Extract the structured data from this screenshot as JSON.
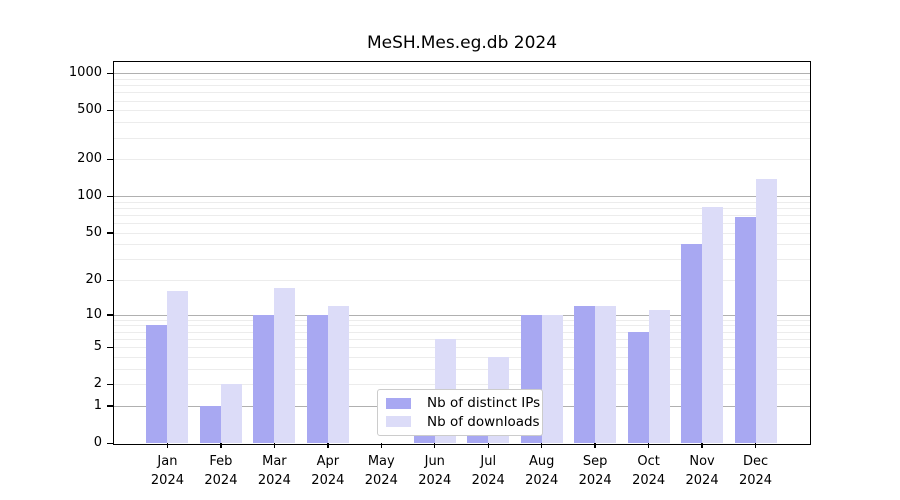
{
  "title": "MeSH.Mes.eg.db 2024",
  "chart_data": {
    "type": "bar",
    "title": "MeSH.Mes.eg.db 2024",
    "categories": [
      "Jan 2024",
      "Feb 2024",
      "Mar 2024",
      "Apr 2024",
      "May 2024",
      "Jun 2024",
      "Jul 2024",
      "Aug 2024",
      "Sep 2024",
      "Oct 2024",
      "Nov 2024",
      "Dec 2024"
    ],
    "month_labels": [
      "Jan",
      "Feb",
      "Mar",
      "Apr",
      "May",
      "Jun",
      "Jul",
      "Aug",
      "Sep",
      "Oct",
      "Nov",
      "Dec"
    ],
    "year_label": "2024",
    "series": [
      {
        "name": "Nb of distinct IPs",
        "color": "#a8a8f2",
        "values": [
          8,
          1,
          10,
          10,
          0,
          1,
          1,
          10,
          12,
          7,
          40,
          67
        ]
      },
      {
        "name": "Nb of downloads",
        "color": "#dcdcf8",
        "values": [
          16,
          2,
          17,
          12,
          0,
          6,
          4,
          10,
          12,
          11,
          82,
          138
        ]
      }
    ],
    "y_ticks": [
      0,
      1,
      2,
      5,
      10,
      20,
      50,
      100,
      200,
      500,
      1000
    ],
    "y_scale": "log1p",
    "ylim": [
      0,
      1300
    ],
    "xlabel": "",
    "ylabel": "",
    "grid": "horizontal, major lines at powers of 10, minor lines at 2-9 per decade",
    "legend_position": "inside lower center"
  },
  "colors": {
    "major_grid": "#b0b0b0",
    "minor_grid": "#ececec",
    "spine": "#000000",
    "background": "#ffffff",
    "legend_border": "#cccccc"
  }
}
